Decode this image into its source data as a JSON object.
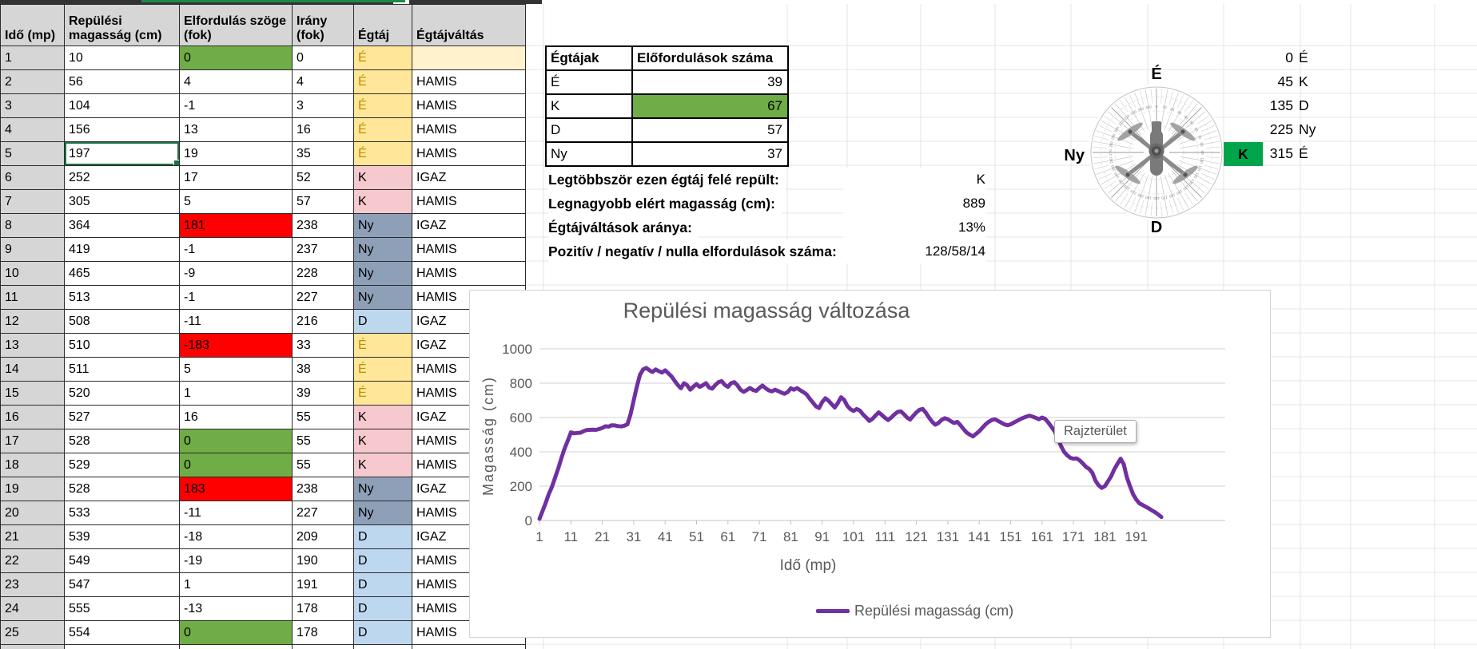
{
  "colors": {
    "purple": "#7030A0",
    "green": "#70AD47",
    "red": "#FF0000",
    "brightGreen": "#00A44A",
    "yellowBg": "#FFE699",
    "yellowText": "#BF8F00",
    "pinkBg": "#F6C9CF",
    "slateBg": "#8EA0B8",
    "blueBg": "#BDD7EE",
    "creamBg": "#FFF2CC",
    "headerBg": "#D6D6D6",
    "gridline": "#D9D9D9",
    "axisText": "#595959",
    "selection": "#1E7145"
  },
  "table": {
    "headers": [
      "Idő (mp)",
      "Repülési magasság (cm)",
      "Elfordulás szöge (fok)",
      "Irány (fok)",
      "Égtáj",
      "Égtájváltás"
    ],
    "rows": [
      [
        1,
        10,
        0,
        0,
        "É",
        "",
        "green"
      ],
      [
        2,
        56,
        4,
        4,
        "É",
        "HAMIS",
        ""
      ],
      [
        3,
        104,
        -1,
        3,
        "É",
        "HAMIS",
        ""
      ],
      [
        4,
        156,
        13,
        16,
        "É",
        "HAMIS",
        ""
      ],
      [
        5,
        197,
        19,
        35,
        "É",
        "HAMIS",
        ""
      ],
      [
        6,
        252,
        17,
        52,
        "K",
        "IGAZ",
        ""
      ],
      [
        7,
        305,
        5,
        57,
        "K",
        "HAMIS",
        ""
      ],
      [
        8,
        364,
        181,
        238,
        "Ny",
        "IGAZ",
        "red"
      ],
      [
        9,
        419,
        -1,
        237,
        "Ny",
        "HAMIS",
        ""
      ],
      [
        10,
        465,
        -9,
        228,
        "Ny",
        "HAMIS",
        ""
      ],
      [
        11,
        513,
        -1,
        227,
        "Ny",
        "HAMIS",
        ""
      ],
      [
        12,
        508,
        -11,
        216,
        "D",
        "IGAZ",
        ""
      ],
      [
        13,
        510,
        -183,
        33,
        "É",
        "IGAZ",
        "red"
      ],
      [
        14,
        511,
        5,
        38,
        "É",
        "HAMIS",
        ""
      ],
      [
        15,
        520,
        1,
        39,
        "É",
        "HAMIS",
        ""
      ],
      [
        16,
        527,
        16,
        55,
        "K",
        "IGAZ",
        ""
      ],
      [
        17,
        528,
        0,
        55,
        "K",
        "HAMIS",
        "green"
      ],
      [
        18,
        529,
        0,
        55,
        "K",
        "HAMIS",
        "green"
      ],
      [
        19,
        528,
        183,
        238,
        "Ny",
        "IGAZ",
        "red"
      ],
      [
        20,
        533,
        -11,
        227,
        "Ny",
        "HAMIS",
        ""
      ],
      [
        21,
        539,
        -18,
        209,
        "D",
        "IGAZ",
        ""
      ],
      [
        22,
        549,
        -19,
        190,
        "D",
        "HAMIS",
        ""
      ],
      [
        23,
        547,
        1,
        191,
        "D",
        "HAMIS",
        ""
      ],
      [
        24,
        555,
        -13,
        178,
        "D",
        "HAMIS",
        ""
      ],
      [
        25,
        554,
        0,
        178,
        "D",
        "HAMIS",
        "green"
      ]
    ],
    "selection": {
      "row": 5,
      "col": 1,
      "value": 197
    }
  },
  "summary": {
    "headers": [
      "Égtájak",
      "Előfordulások száma"
    ],
    "rows": [
      [
        "É",
        39,
        ""
      ],
      [
        "K",
        67,
        "green"
      ],
      [
        "D",
        57,
        ""
      ],
      [
        "Ny",
        37,
        ""
      ]
    ]
  },
  "stats": [
    {
      "label": "Legtöbbször ezen égtáj felé repült:",
      "value": "K"
    },
    {
      "label": "Legnagyobb elért magasság (cm):",
      "value": "889"
    },
    {
      "label": "Égtájváltások aránya:",
      "value": "13%"
    },
    {
      "label": "Pozitív / negatív / nulla elfordulások száma:",
      "value": "128/58/14"
    }
  ],
  "directions": [
    [
      "0",
      "É"
    ],
    [
      "45",
      "K"
    ],
    [
      "135",
      "D"
    ],
    [
      "225",
      "Ny"
    ],
    [
      "315",
      "É"
    ]
  ],
  "compass": {
    "north": "É",
    "south": "D",
    "west": "Ny",
    "east_cell": "K"
  },
  "tooltip": "Rajzterület",
  "chart_data": {
    "type": "line",
    "title": "Repülési magasság változása",
    "xlabel": "Idő (mp)",
    "ylabel": "Magasság (cm)",
    "x_start": 1,
    "x_ticks": [
      1,
      11,
      21,
      31,
      41,
      51,
      61,
      71,
      81,
      91,
      101,
      111,
      121,
      131,
      141,
      151,
      161,
      171,
      181,
      191
    ],
    "ylim": [
      0,
      1000
    ],
    "y_ticks": [
      0,
      200,
      400,
      600,
      800,
      1000
    ],
    "grid": true,
    "legend_position": "bottom",
    "series": [
      {
        "name": "Repülési magasság (cm)",
        "color": "#7030A0",
        "values": [
          10,
          56,
          104,
          156,
          197,
          252,
          305,
          364,
          419,
          465,
          513,
          508,
          510,
          511,
          520,
          527,
          528,
          529,
          528,
          533,
          539,
          549,
          547,
          555,
          554,
          550,
          548,
          552,
          560,
          620,
          700,
          780,
          850,
          880,
          889,
          875,
          865,
          880,
          870,
          862,
          875,
          858,
          840,
          815,
          790,
          770,
          800,
          788,
          762,
          780,
          795,
          778,
          788,
          800,
          775,
          768,
          790,
          806,
          812,
          790,
          778,
          800,
          806,
          788,
          762,
          750,
          760,
          772,
          760,
          755,
          772,
          786,
          770,
          758,
          752,
          762,
          754,
          745,
          738,
          748,
          770,
          762,
          771,
          759,
          748,
          735,
          710,
          688,
          665,
          655,
          690,
          712,
          698,
          678,
          658,
          685,
          718,
          703,
          668,
          648,
          638,
          650,
          640,
          618,
          600,
          580,
          592,
          612,
          630,
          615,
          598,
          585,
          600,
          618,
          632,
          636,
          620,
          600,
          588,
          610,
          630,
          645,
          650,
          628,
          600,
          575,
          558,
          568,
          585,
          596,
          590,
          578,
          568,
          575,
          556,
          532,
          512,
          500,
          490,
          505,
          520,
          540,
          560,
          575,
          585,
          590,
          580,
          570,
          560,
          555,
          560,
          570,
          580,
          590,
          598,
          605,
          610,
          605,
          598,
          590,
          600,
          592,
          570,
          545,
          520,
          480,
          435,
          400,
          380,
          365,
          360,
          362,
          350,
          332,
          312,
          300,
          278,
          232,
          205,
          190,
          200,
          228,
          258,
          298,
          330,
          360,
          328,
          252,
          200,
          152,
          122,
          100,
          90,
          80,
          70,
          58,
          48,
          35,
          20
        ]
      }
    ]
  }
}
